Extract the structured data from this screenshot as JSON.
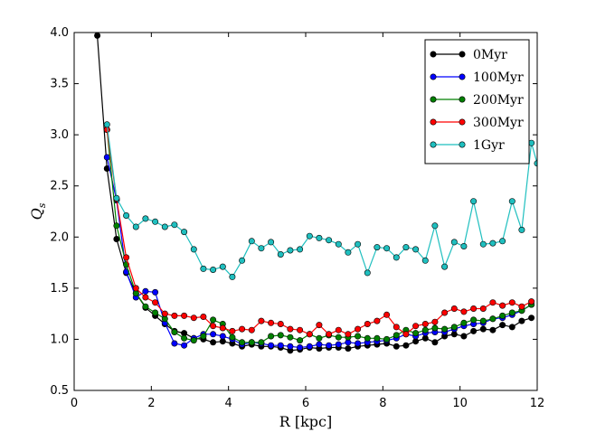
{
  "chart_data": {
    "type": "line",
    "title": "",
    "xlabel": "R [kpc]",
    "ylabel": "Q_s",
    "xlim": [
      0,
      12
    ],
    "ylim": [
      0.5,
      4.0
    ],
    "xticks": [
      0,
      2,
      4,
      6,
      8,
      10,
      12
    ],
    "yticks": [
      0.5,
      1.0,
      1.5,
      2.0,
      2.5,
      3.0,
      3.5,
      4.0
    ],
    "xtick_labels": [
      "0",
      "2",
      "4",
      "6",
      "8",
      "10",
      "12"
    ],
    "ytick_labels": [
      "0.5",
      "1.0",
      "1.5",
      "2.0",
      "2.5",
      "3.0",
      "3.5",
      "4.0"
    ],
    "grid": false,
    "legend_position": "top-right",
    "series": [
      {
        "name": "0Myr",
        "color": "#000000",
        "x": [
          0.6,
          0.85,
          1.1,
          1.35,
          1.6,
          1.85,
          2.1,
          2.35,
          2.6,
          2.85,
          3.1,
          3.35,
          3.6,
          3.85,
          4.1,
          4.35,
          4.6,
          4.85,
          5.1,
          5.35,
          5.6,
          5.85,
          6.1,
          6.35,
          6.6,
          6.85,
          7.1,
          7.35,
          7.6,
          7.85,
          8.1,
          8.35,
          8.6,
          8.85,
          9.1,
          9.35,
          9.6,
          9.85,
          10.1,
          10.35,
          10.6,
          10.85,
          11.1,
          11.35,
          11.6,
          11.85
        ],
        "y": [
          3.97,
          2.67,
          1.98,
          1.65,
          1.45,
          1.31,
          1.23,
          1.15,
          1.08,
          1.06,
          1.01,
          1.0,
          0.97,
          0.98,
          0.96,
          0.93,
          0.95,
          0.93,
          0.93,
          0.92,
          0.89,
          0.9,
          0.92,
          0.91,
          0.92,
          0.92,
          0.91,
          0.93,
          0.94,
          0.95,
          0.96,
          0.93,
          0.94,
          0.98,
          1.01,
          0.97,
          1.03,
          1.05,
          1.03,
          1.08,
          1.1,
          1.09,
          1.14,
          1.12,
          1.18,
          1.21
        ]
      },
      {
        "name": "100Myr",
        "color": "#0000ff",
        "x": [
          0.85,
          1.1,
          1.35,
          1.6,
          1.85,
          2.1,
          2.35,
          2.6,
          2.85,
          3.1,
          3.35,
          3.6,
          3.85,
          4.1,
          4.35,
          4.6,
          4.85,
          5.1,
          5.35,
          5.6,
          5.85,
          6.1,
          6.35,
          6.6,
          6.85,
          7.1,
          7.35,
          7.6,
          7.85,
          8.1,
          8.35,
          8.6,
          8.85,
          9.1,
          9.35,
          9.6,
          9.85,
          10.1,
          10.35,
          10.6,
          10.85,
          11.1,
          11.35,
          11.6,
          11.85
        ],
        "y": [
          2.78,
          2.36,
          1.66,
          1.41,
          1.47,
          1.46,
          1.16,
          0.96,
          0.94,
          1.01,
          1.05,
          1.05,
          1.03,
          1.0,
          0.95,
          0.97,
          0.96,
          0.94,
          0.94,
          0.93,
          0.92,
          0.93,
          0.95,
          0.94,
          0.95,
          0.97,
          0.96,
          0.97,
          0.98,
          0.99,
          1.01,
          1.05,
          1.03,
          1.06,
          1.07,
          1.07,
          1.1,
          1.13,
          1.15,
          1.16,
          1.2,
          1.21,
          1.24,
          1.28,
          1.34
        ]
      },
      {
        "name": "200Myr",
        "color": "#008000",
        "x": [
          0.85,
          1.1,
          1.35,
          1.6,
          1.85,
          2.1,
          2.35,
          2.6,
          2.85,
          3.1,
          3.35,
          3.6,
          3.85,
          4.1,
          4.35,
          4.6,
          4.85,
          5.1,
          5.35,
          5.6,
          5.85,
          6.1,
          6.35,
          6.6,
          6.85,
          7.1,
          7.35,
          7.6,
          7.85,
          8.1,
          8.35,
          8.6,
          8.85,
          9.1,
          9.35,
          9.6,
          9.85,
          10.1,
          10.35,
          10.6,
          10.85,
          11.1,
          11.35,
          11.6,
          11.85
        ],
        "y": [
          3.05,
          2.11,
          1.73,
          1.45,
          1.32,
          1.26,
          1.2,
          1.07,
          1.01,
          0.99,
          1.03,
          1.19,
          1.15,
          1.02,
          0.97,
          0.97,
          0.97,
          1.03,
          1.04,
          1.02,
          0.99,
          1.05,
          1.01,
          1.04,
          1.02,
          1.02,
          1.03,
          1.01,
          1.01,
          1.0,
          1.04,
          1.09,
          1.06,
          1.09,
          1.11,
          1.1,
          1.12,
          1.16,
          1.19,
          1.18,
          1.2,
          1.23,
          1.26,
          1.28,
          1.34
        ]
      },
      {
        "name": "300Myr",
        "color": "#ff0000",
        "x": [
          0.85,
          1.1,
          1.35,
          1.6,
          1.85,
          2.1,
          2.35,
          2.6,
          2.85,
          3.1,
          3.35,
          3.6,
          3.85,
          4.1,
          4.35,
          4.6,
          4.85,
          5.1,
          5.35,
          5.6,
          5.85,
          6.1,
          6.35,
          6.6,
          6.85,
          7.1,
          7.35,
          7.6,
          7.85,
          8.1,
          8.35,
          8.6,
          8.85,
          9.1,
          9.35,
          9.6,
          9.85,
          10.1,
          10.35,
          10.6,
          10.85,
          11.1,
          11.35,
          11.6,
          11.85
        ],
        "y": [
          3.05,
          2.37,
          1.8,
          1.5,
          1.41,
          1.36,
          1.25,
          1.23,
          1.23,
          1.21,
          1.22,
          1.13,
          1.11,
          1.08,
          1.1,
          1.09,
          1.18,
          1.16,
          1.15,
          1.1,
          1.09,
          1.05,
          1.14,
          1.05,
          1.09,
          1.05,
          1.1,
          1.15,
          1.18,
          1.24,
          1.12,
          1.05,
          1.13,
          1.15,
          1.17,
          1.26,
          1.3,
          1.27,
          1.3,
          1.3,
          1.36,
          1.33,
          1.36,
          1.32,
          1.37
        ]
      },
      {
        "name": "1Gyr",
        "color": "#1fbfbf",
        "x": [
          0.85,
          1.1,
          1.35,
          1.6,
          1.85,
          2.1,
          2.35,
          2.6,
          2.85,
          3.1,
          3.35,
          3.6,
          3.85,
          4.1,
          4.35,
          4.6,
          4.85,
          5.1,
          5.35,
          5.6,
          5.85,
          6.1,
          6.35,
          6.6,
          6.85,
          7.1,
          7.35,
          7.6,
          7.85,
          8.1,
          8.35,
          8.6,
          8.85,
          9.1,
          9.35,
          9.6,
          9.85,
          10.1,
          10.35,
          10.6,
          10.85,
          11.1,
          11.35,
          11.6,
          11.85,
          12.0
        ],
        "y": [
          3.1,
          2.38,
          2.21,
          2.1,
          2.18,
          2.15,
          2.1,
          2.12,
          2.05,
          1.88,
          1.69,
          1.68,
          1.71,
          1.61,
          1.77,
          1.96,
          1.89,
          1.95,
          1.83,
          1.87,
          1.88,
          2.01,
          1.99,
          1.97,
          1.93,
          1.85,
          1.93,
          1.65,
          1.9,
          1.89,
          1.8,
          1.9,
          1.88,
          1.77,
          2.11,
          1.71,
          1.95,
          1.91,
          2.35,
          1.93,
          1.94,
          1.96,
          2.35,
          2.07,
          2.92,
          2.72
        ]
      }
    ]
  }
}
